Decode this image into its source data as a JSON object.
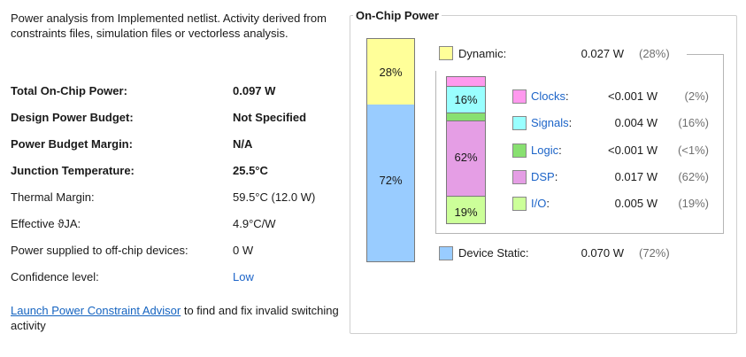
{
  "summary": {
    "intro": "Power analysis from Implemented netlist. Activity derived from constraints files, simulation files or vectorless analysis.",
    "rows": [
      {
        "label": "Total On-Chip Power:",
        "value": "0.097 W"
      },
      {
        "label": "Design Power Budget:",
        "value": "Not Specified"
      },
      {
        "label": "Power Budget Margin:",
        "value": "N/A"
      },
      {
        "label": "Junction Temperature:",
        "value": "25.5°C"
      },
      {
        "label": "Thermal Margin:",
        "value": "59.5°C (12.0 W)"
      },
      {
        "label": "Effective ϑJA:",
        "value": "4.9°C/W"
      },
      {
        "label": "Power supplied to off-chip devices:",
        "value": "0 W"
      },
      {
        "label": "Confidence level:",
        "value": "Low"
      }
    ],
    "link_text": "Launch Power Constraint Advisor",
    "link_suffix": " to find and fix invalid switching activity"
  },
  "on_chip": {
    "title": "On-Chip Power",
    "dynamic": {
      "label": "Dynamic:",
      "value": "0.027 W",
      "pct": "(28%)",
      "bar_text": "28%",
      "fraction": 0.28,
      "color": "#ffff99"
    },
    "static": {
      "label": "Device Static:",
      "value": "0.070 W",
      "pct": "(72%)",
      "bar_text": "72%",
      "fraction": 0.72,
      "color": "#99ccff"
    },
    "breakdown": [
      {
        "label": "Clocks",
        "value": "<0.001 W",
        "pct": "(2%)",
        "color": "#ff99ee",
        "bar_text": "",
        "fraction": 0.02
      },
      {
        "label": "Signals",
        "value": "0.004 W",
        "pct": "(16%)",
        "color": "#99ffff",
        "bar_text": "16%",
        "fraction": 0.16
      },
      {
        "label": "Logic",
        "value": "<0.001 W",
        "pct": "(<1%)",
        "color": "#88e070",
        "bar_text": "",
        "fraction": 0.01
      },
      {
        "label": "DSP",
        "value": "0.017 W",
        "pct": "(62%)",
        "color": "#e59ee5",
        "bar_text": "62%",
        "fraction": 0.62
      },
      {
        "label": "I/O",
        "value": "0.005 W",
        "pct": "(19%)",
        "color": "#ccff99",
        "bar_text": "19%",
        "fraction": 0.19
      }
    ],
    "colon": ":"
  }
}
